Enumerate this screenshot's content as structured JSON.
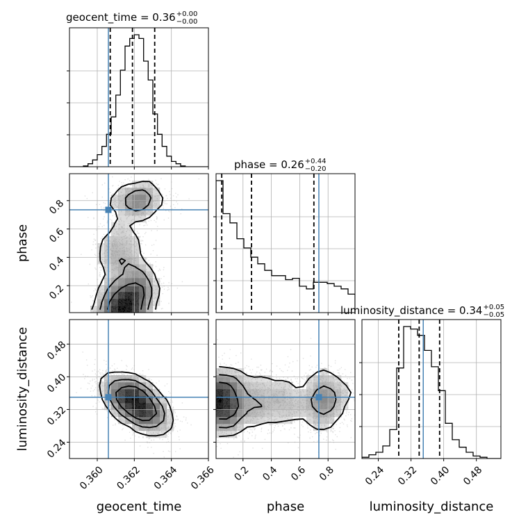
{
  "chart_data": {
    "type": "corner",
    "parameters": [
      "geocent_time",
      "phase",
      "luminosity_distance"
    ],
    "titles": [
      {
        "param": "geocent_time",
        "prefix": "geocent_time = 0.36",
        "plus": "+0.00",
        "minus": "−0.00"
      },
      {
        "param": "phase",
        "prefix": "phase = 0.26",
        "plus": "+0.44",
        "minus": "−0.20"
      },
      {
        "param": "luminosity_distance",
        "prefix": "luminosity_distance = 0.34",
        "plus": "+0.05",
        "minus": "−0.05"
      }
    ],
    "axes": {
      "geocent_time": {
        "range": [
          0.3585,
          0.366
        ],
        "ticks": [
          0.36,
          0.362,
          0.364,
          0.366
        ],
        "tick_labels": [
          "0.360",
          "0.362",
          "0.364",
          "0.366"
        ]
      },
      "phase": {
        "range": [
          0.01,
          0.99
        ],
        "ticks": [
          0.2,
          0.4,
          0.6,
          0.8
        ],
        "tick_labels": [
          "0.2",
          "0.4",
          "0.6",
          "0.8"
        ]
      },
      "luminosity_distance": {
        "range": [
          0.2,
          0.54
        ],
        "ticks": [
          0.24,
          0.32,
          0.4,
          0.48
        ],
        "tick_labels": [
          "0.24",
          "0.32",
          "0.40",
          "0.48"
        ]
      }
    },
    "injection": {
      "geocent_time": 0.3606,
      "phase": 0.735,
      "luminosity_distance": 0.35
    },
    "quantiles": {
      "geocent_time": [
        0.3607,
        0.3619,
        0.3631
      ],
      "phase": [
        0.05,
        0.26,
        0.7
      ],
      "luminosity_distance": [
        0.29,
        0.34,
        0.39
      ]
    },
    "histograms": {
      "geocent_time": {
        "edges": [
          0.3585,
          0.35875,
          0.359,
          0.35925,
          0.3595,
          0.35975,
          0.36,
          0.36025,
          0.3605,
          0.36075,
          0.361,
          0.36125,
          0.3615,
          0.36175,
          0.362,
          0.36225,
          0.3625,
          0.36275,
          0.363,
          0.36325,
          0.3635,
          0.36375,
          0.364,
          0.36425,
          0.3645,
          0.36475,
          0.365,
          0.36525,
          0.3655,
          0.36575,
          0.366
        ],
        "counts": [
          0,
          0,
          0,
          1,
          4,
          9,
          16,
          27,
          43,
          66,
          95,
          128,
          160,
          170,
          175,
          170,
          140,
          115,
          70,
          43,
          27,
          14,
          7,
          4,
          1,
          0,
          0,
          0,
          0,
          0
        ]
      },
      "phase": {
        "edges": [
          0.01,
          0.059,
          0.108,
          0.157,
          0.206,
          0.255,
          0.304,
          0.353,
          0.402,
          0.451,
          0.5,
          0.549,
          0.598,
          0.647,
          0.696,
          0.745,
          0.794,
          0.843,
          0.892,
          0.941,
          0.99
        ],
        "counts": [
          100,
          75,
          68,
          56,
          49,
          42,
          37,
          32,
          28,
          28,
          25,
          26,
          20,
          18,
          23,
          23,
          22,
          20,
          18,
          14
        ]
      },
      "luminosity_distance": {
        "edges": [
          0.2,
          0.217,
          0.234,
          0.251,
          0.268,
          0.285,
          0.302,
          0.319,
          0.336,
          0.353,
          0.37,
          0.387,
          0.404,
          0.421,
          0.438,
          0.455,
          0.472,
          0.489,
          0.506,
          0.523,
          0.54
        ],
        "counts": [
          1,
          3,
          5,
          10,
          23,
          72,
          105,
          103,
          98,
          86,
          73,
          54,
          28,
          15,
          9,
          5,
          2,
          1,
          0,
          0
        ]
      }
    },
    "density_2d": [
      {
        "x": "geocent_time",
        "y": "phase",
        "samples": [
          {
            "cx": 0.3614,
            "cy": 0.05,
            "sx": 0.0007,
            "sy": 0.07,
            "n": 900
          },
          {
            "cx": 0.362,
            "cy": 0.19,
            "sx": 0.0008,
            "sy": 0.09,
            "n": 700
          },
          {
            "cx": 0.3612,
            "cy": 0.45,
            "sx": 0.0007,
            "sy": 0.12,
            "n": 500
          },
          {
            "cx": 0.3622,
            "cy": 0.8,
            "sx": 0.0009,
            "sy": 0.07,
            "n": 550
          }
        ]
      },
      {
        "x": "geocent_time",
        "y": "luminosity_distance",
        "samples": [
          {
            "cx": 0.3621,
            "cy": 0.335,
            "sx": 0.0009,
            "sy": 0.035,
            "rho": -0.55,
            "n": 2600
          }
        ]
      },
      {
        "x": "phase",
        "y": "luminosity_distance",
        "samples": [
          {
            "cx": 0.05,
            "cy": 0.34,
            "sx": 0.08,
            "sy": 0.04,
            "n": 1300
          },
          {
            "cx": 0.35,
            "cy": 0.34,
            "sx": 0.2,
            "sy": 0.04,
            "n": 1100
          },
          {
            "cx": 0.78,
            "cy": 0.34,
            "sx": 0.09,
            "sy": 0.04,
            "n": 700
          }
        ]
      }
    ],
    "colors": {
      "injection": "#4682b4",
      "histogram": "#000000",
      "quantile": "#000000",
      "grid": "#b0b0b0",
      "samples": "#808080"
    },
    "grid": true
  }
}
